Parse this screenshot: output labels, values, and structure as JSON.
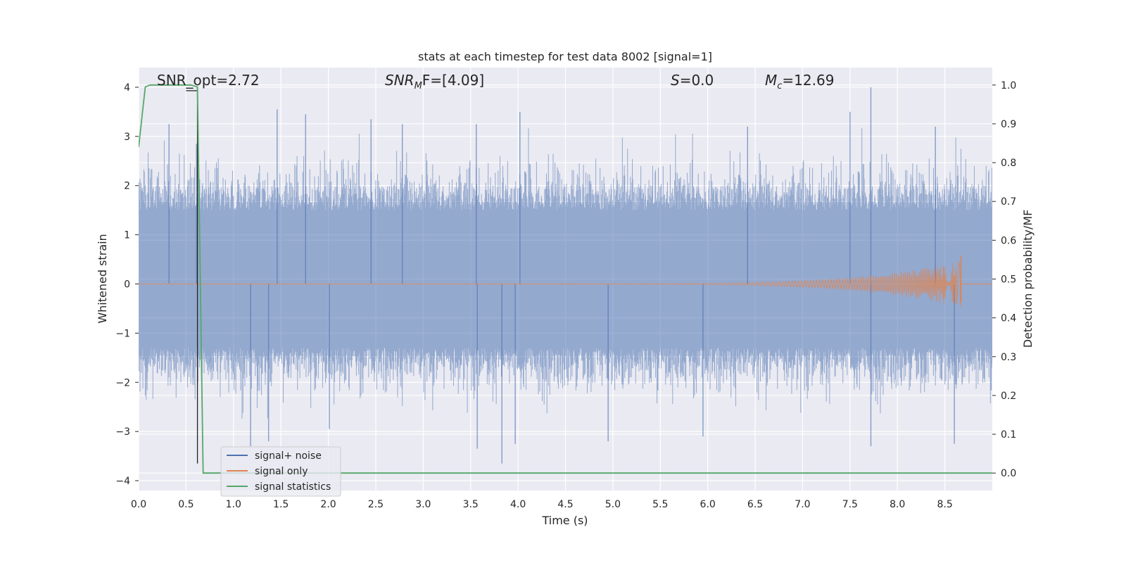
{
  "chart_data": {
    "type": "line",
    "title": "stats at each timestep for test data 8002 [signal=1]",
    "xlabel": "Time (s)",
    "ylabel": "Whitened strain",
    "ylabel_right": "Detection probability/MF",
    "xlim": [
      0.0,
      9.0
    ],
    "ylim": [
      -4.2,
      4.4
    ],
    "ylim_right": [
      -0.045,
      1.045
    ],
    "xticks": [
      0.0,
      0.5,
      1.0,
      1.5,
      2.0,
      2.5,
      3.0,
      3.5,
      4.0,
      4.5,
      5.0,
      5.5,
      6.0,
      6.5,
      7.0,
      7.5,
      8.0,
      8.5
    ],
    "xtick_labels": [
      "0.0",
      "0.5",
      "1.0",
      "1.5",
      "2.0",
      "2.5",
      "3.0",
      "3.5",
      "4.0",
      "4.5",
      "5.0",
      "5.5",
      "6.0",
      "6.5",
      "7.0",
      "7.5",
      "8.0",
      "8.5"
    ],
    "yticks": [
      -4,
      -3,
      -2,
      -1,
      0,
      1,
      2,
      3,
      4
    ],
    "ytick_labels": [
      "−4",
      "−3",
      "−2",
      "−1",
      "0",
      "1",
      "2",
      "3",
      "4"
    ],
    "yticks_right": [
      0.0,
      0.1,
      0.2,
      0.3,
      0.4,
      0.5,
      0.6,
      0.7,
      0.8,
      0.9,
      1.0
    ],
    "ytick_labels_right": [
      "0.0",
      "0.1",
      "0.2",
      "0.3",
      "0.4",
      "0.5",
      "0.6",
      "0.7",
      "0.8",
      "0.9",
      "1.0"
    ],
    "grid": true,
    "legend_position": "lower-left",
    "annotations": {
      "snr_opt": "SNR_opt=2.72",
      "snr_mf_base": "SNR",
      "snr_mf_sub": "M",
      "snr_mf_rest": "F=[4.09]",
      "s_var": "S",
      "s_rest": "=0.0",
      "mc_var": "M",
      "mc_sub": "c",
      "mc_rest": "=12.69"
    },
    "series": [
      {
        "name": "signal+ noise",
        "kind": "noise",
        "color": "#4c72b0",
        "opacity": 0.55,
        "x_range": [
          0.0,
          9.0
        ],
        "envelope_typical": [
          -1.3,
          1.5
        ],
        "peaks": [
          {
            "x": 0.32,
            "y": 3.25
          },
          {
            "x": 0.61,
            "y": 2.85
          },
          {
            "x": 1.46,
            "y": 3.55
          },
          {
            "x": 1.76,
            "y": 3.45
          },
          {
            "x": 2.45,
            "y": 3.35
          },
          {
            "x": 2.78,
            "y": 3.25
          },
          {
            "x": 3.56,
            "y": 3.25
          },
          {
            "x": 4.02,
            "y": 3.5
          },
          {
            "x": 6.42,
            "y": 3.2
          },
          {
            "x": 7.5,
            "y": 3.5
          },
          {
            "x": 7.72,
            "y": 4.0
          },
          {
            "x": 8.4,
            "y": 3.2
          }
        ],
        "troughs": [
          {
            "x": 1.18,
            "y": -3.3
          },
          {
            "x": 1.37,
            "y": -3.2
          },
          {
            "x": 2.01,
            "y": -2.95
          },
          {
            "x": 3.57,
            "y": -3.35
          },
          {
            "x": 3.83,
            "y": -3.65
          },
          {
            "x": 3.97,
            "y": -3.25
          },
          {
            "x": 4.95,
            "y": -3.2
          },
          {
            "x": 5.95,
            "y": -3.1
          },
          {
            "x": 7.72,
            "y": -3.3
          },
          {
            "x": 8.6,
            "y": -3.25
          }
        ]
      },
      {
        "name": "signal only",
        "kind": "chirp",
        "color": "#dd8452",
        "start": 0.0,
        "end": 8.67,
        "growth_start": 4.5,
        "amplitude_at_merger_pos": 0.58,
        "amplitude_at_merger_neg": -0.38
      },
      {
        "name": "signal statistics",
        "kind": "step",
        "color": "#55a868",
        "axis": "right",
        "points": [
          [
            0.0,
            0.84
          ],
          [
            0.07,
            0.995
          ],
          [
            0.12,
            1.0
          ],
          [
            0.55,
            1.0
          ],
          [
            0.62,
            0.995
          ],
          [
            0.68,
            0.0
          ],
          [
            9.0,
            0.0
          ]
        ]
      }
    ],
    "extra_lines": [
      {
        "kind": "vline",
        "x": 0.62,
        "color": "#222222",
        "y_range": [
          -3.65,
          4.0
        ]
      },
      {
        "kind": "segment",
        "color": "#222222",
        "points": [
          [
            0.5,
            3.93
          ],
          [
            0.62,
            3.93
          ]
        ]
      }
    ]
  }
}
